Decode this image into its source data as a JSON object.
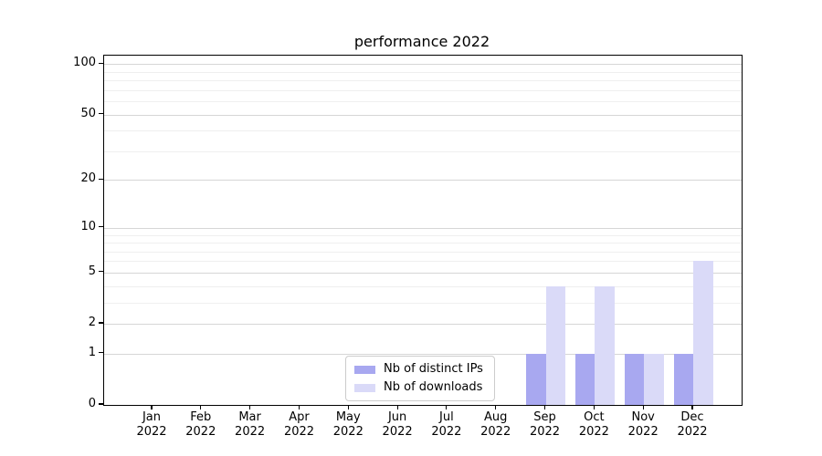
{
  "title": "performance 2022",
  "chart_data": {
    "type": "bar",
    "title": "performance 2022",
    "xlabel": "",
    "ylabel": "",
    "categories": [
      "Jan",
      "Feb",
      "Mar",
      "Apr",
      "May",
      "Jun",
      "Jul",
      "Aug",
      "Sep",
      "Oct",
      "Nov",
      "Dec"
    ],
    "category_year": "2022",
    "series": [
      {
        "name": "Nb of distinct IPs",
        "color": "#a8a8f0",
        "values": [
          0,
          0,
          0,
          0,
          0,
          0,
          0,
          0,
          1,
          1,
          1,
          1
        ]
      },
      {
        "name": "Nb of downloads",
        "color": "#dadaf8",
        "values": [
          0,
          0,
          0,
          0,
          0,
          0,
          0,
          0,
          4,
          4,
          1,
          6
        ]
      }
    ],
    "yscale": "log(1+x)",
    "ylim": [
      0,
      112
    ],
    "yticks": [
      0,
      1,
      2,
      5,
      10,
      20,
      50,
      100
    ],
    "yminorticks": [
      3,
      4,
      6,
      7,
      8,
      9,
      30,
      40,
      60,
      70,
      80,
      90
    ],
    "grid": "on",
    "legend_position": "lower center inside",
    "colors": {
      "major_grid": "#d6d6d6",
      "minor_grid": "#efefef",
      "axis": "#000000",
      "background": "#ffffff"
    }
  }
}
